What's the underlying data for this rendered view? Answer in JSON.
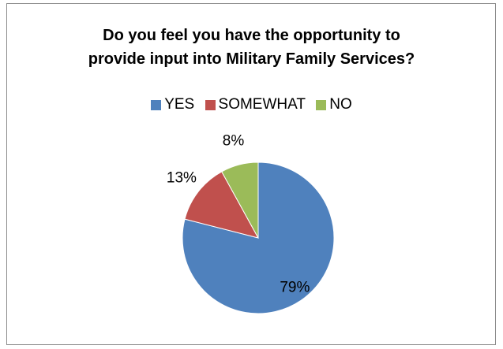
{
  "chart_data": {
    "type": "pie",
    "title": "Do you feel you have the opportunity to provide input into Military Family Services?",
    "title_lines": [
      "Do you feel you have the opportunity to",
      "provide input into Military Family Services?"
    ],
    "categories": [
      "YES",
      "SOMEWHAT",
      "NO"
    ],
    "values": [
      79,
      13,
      8
    ],
    "labels": [
      "79%",
      "13%",
      "8%"
    ],
    "colors": [
      "#4f81bd",
      "#c0504d",
      "#9bbb59"
    ],
    "legend_position": "top",
    "start_angle": "12 o'clock",
    "direction": "clockwise"
  }
}
